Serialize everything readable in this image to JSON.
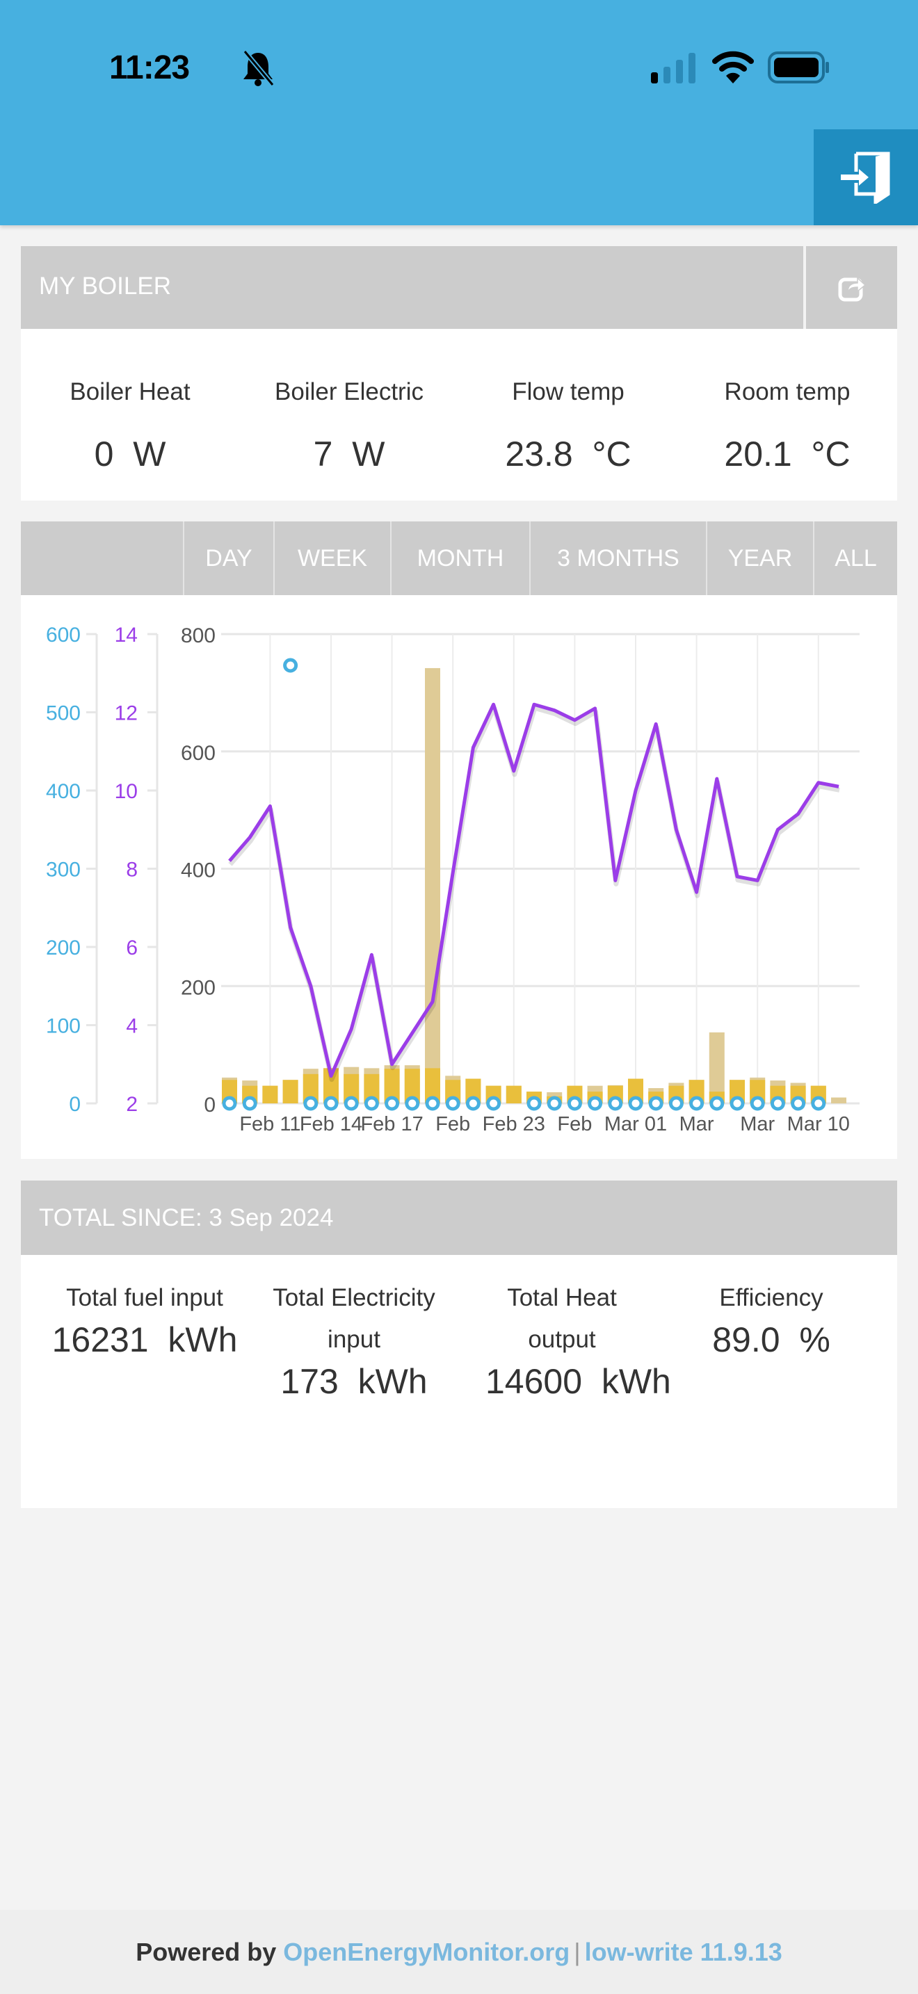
{
  "status_bar": {
    "time": "11:23",
    "icons": [
      "bell-slash-icon",
      "signal-icon",
      "wifi-icon",
      "battery-icon"
    ]
  },
  "header": {
    "login_icon": "sign-in-icon"
  },
  "boiler": {
    "title": "MY BOILER",
    "share_icon": "share-icon",
    "stats": [
      {
        "label": "Boiler Heat",
        "value": "0",
        "unit": "W"
      },
      {
        "label": "Boiler Electric",
        "value": "7",
        "unit": "W"
      },
      {
        "label": "Flow temp",
        "value": "23.8",
        "unit": "°C"
      },
      {
        "label": "Room temp",
        "value": "20.1",
        "unit": "°C"
      }
    ]
  },
  "ranges": [
    "DAY",
    "WEEK",
    "MONTH",
    "3 MONTHS",
    "YEAR",
    "ALL"
  ],
  "chart_data": {
    "type": "bar+line",
    "x_labels": [
      "Feb 11",
      "Feb 14",
      "Feb 17",
      "Feb",
      "Feb 23",
      "Feb",
      "Mar 01",
      "Mar",
      "Mar",
      "Mar 10"
    ],
    "axes": {
      "left_blue": {
        "range": [
          0,
          600
        ],
        "ticks": [
          "0",
          "100",
          "200",
          "300",
          "400",
          "500",
          "600"
        ],
        "color": "#47b0e0"
      },
      "left_purple": {
        "range": [
          2,
          14
        ],
        "ticks": [
          "2",
          "4",
          "6",
          "8",
          "10",
          "12",
          "14"
        ],
        "color": "#9b3de8"
      },
      "main": {
        "range": [
          0,
          800
        ],
        "ticks": [
          "0",
          "200",
          "400",
          "600",
          "800"
        ]
      }
    },
    "series": [
      {
        "name": "heat_bars",
        "type": "bar",
        "color": "#e9bf3c",
        "axis": "main",
        "values": [
          40,
          30,
          30,
          40,
          50,
          60,
          50,
          50,
          59,
          59,
          60,
          40,
          42,
          30,
          30,
          20,
          12,
          30,
          20,
          30,
          42,
          20,
          30,
          40,
          20,
          40,
          40,
          30,
          30,
          30,
          0
        ]
      },
      {
        "name": "fuel_bars",
        "type": "bar",
        "color": "#dfcb96",
        "axis": "main",
        "values": [
          44,
          39,
          30,
          40,
          59,
          60,
          62,
          60,
          65,
          65,
          742,
          47,
          42,
          30,
          30,
          20,
          19,
          30,
          30,
          31,
          42,
          26,
          35,
          40,
          121,
          40,
          44,
          39,
          35,
          30,
          10
        ]
      },
      {
        "name": "blue_points",
        "type": "scatter",
        "color": "#47b0e0",
        "axis": "left_blue",
        "values": [
          0,
          0,
          null,
          560,
          0,
          0,
          0,
          0,
          0,
          0,
          0,
          0,
          0,
          0,
          null,
          0,
          0,
          0,
          0,
          0,
          0,
          0,
          0,
          0,
          0,
          0,
          0,
          0,
          0,
          0,
          null
        ]
      },
      {
        "name": "purple_line",
        "type": "line",
        "color": "#9b3de8",
        "axis": "left_purple",
        "values": [
          8.2,
          8.8,
          9.6,
          6.5,
          5.0,
          2.7,
          3.9,
          5.8,
          3.0,
          3.8,
          4.6,
          7.9,
          11.1,
          12.2,
          10.5,
          12.2,
          12.05,
          11.8,
          12.1,
          7.7,
          10.0,
          11.7,
          9.0,
          7.4,
          10.3,
          7.8,
          7.7,
          9.0,
          9.4,
          10.2,
          10.1
        ]
      }
    ]
  },
  "totals": {
    "title": "TOTAL SINCE: 3 Sep 2024",
    "items": [
      {
        "label": "Total fuel input",
        "value": "16231",
        "unit": "kWh"
      },
      {
        "label": "Total Electricity input",
        "value": "173",
        "unit": "kWh"
      },
      {
        "label": "Total Heat output",
        "value": "14600",
        "unit": "kWh"
      },
      {
        "label": "Efficiency",
        "value": "89.0",
        "unit": "%"
      }
    ]
  },
  "footer": {
    "prefix": "Powered by",
    "link": "OpenEnergyMonitor.org",
    "separator": "|",
    "version": "low-write 11.9.13"
  }
}
